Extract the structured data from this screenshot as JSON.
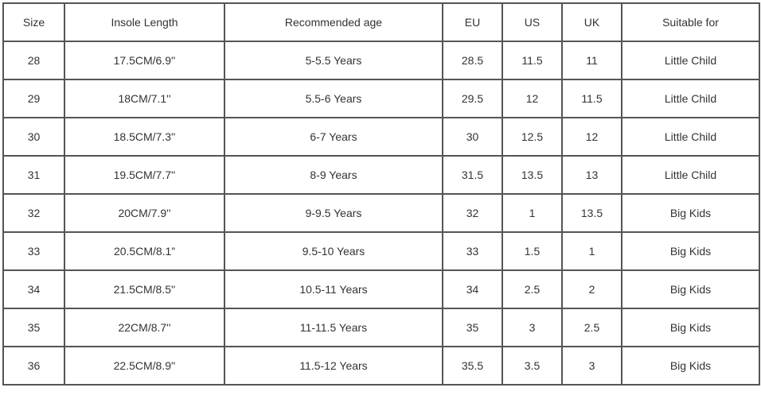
{
  "headers": [
    "Size",
    "Insole Length",
    "Recommended age",
    "EU",
    "US",
    "UK",
    "Suitable for"
  ],
  "rows": [
    [
      "28",
      "17.5CM/6.9''",
      "5-5.5 Years",
      "28.5",
      "11.5",
      "11",
      "Little Child"
    ],
    [
      "29",
      "18CM/7.1''",
      "5.5-6 Years",
      "29.5",
      "12",
      "11.5",
      "Little Child"
    ],
    [
      "30",
      "18.5CM/7.3''",
      "6-7 Years",
      "30",
      "12.5",
      "12",
      "Little Child"
    ],
    [
      "31",
      "19.5CM/7.7''",
      "8-9 Years",
      "31.5",
      "13.5",
      "13",
      "Little Child"
    ],
    [
      "32",
      "20CM/7.9''",
      "9-9.5 Years",
      "32",
      "1",
      "13.5",
      "Big Kids"
    ],
    [
      "33",
      "20.5CM/8.1”",
      "9.5-10 Years",
      "33",
      "1.5",
      "1",
      "Big Kids"
    ],
    [
      "34",
      "21.5CM/8.5''",
      "10.5-11 Years",
      "34",
      "2.5",
      "2",
      "Big Kids"
    ],
    [
      "35",
      "22CM/8.7''",
      "11-11.5 Years",
      "35",
      "3",
      "2.5",
      "Big Kids"
    ],
    [
      "36",
      "22.5CM/8.9''",
      "11.5-12 Years",
      "35.5",
      "3.5",
      "3",
      "Big Kids"
    ]
  ]
}
